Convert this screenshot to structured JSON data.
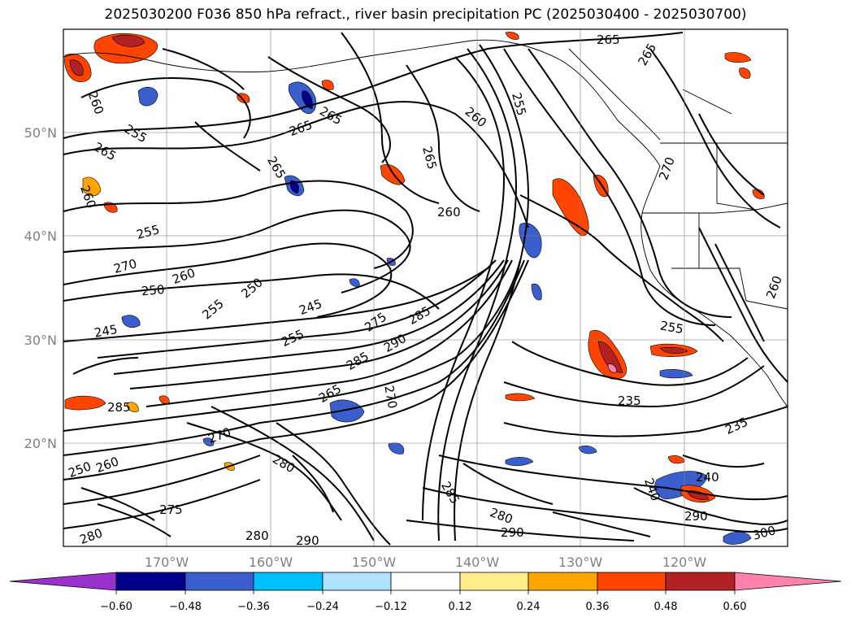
{
  "title": "2025030200 F036 850 hPa refract., river basin precipitation PC (2025030400 - 2025030700)",
  "latitude_labels": [
    "50°N",
    "40°N",
    "30°N",
    "20°N"
  ],
  "longitude_labels": [
    "170°W",
    "160°W",
    "150°W",
    "140°W",
    "130°W",
    "120°W"
  ],
  "colorbar": {
    "colors": [
      "#9932cc",
      "#00008b",
      "#3a5fcd",
      "#00bfff",
      "#b0e2ff",
      "#ffffff",
      "#ffec8b",
      "#ffa500",
      "#ff4500",
      "#b22222",
      "#ff82ab"
    ],
    "tick_labels": [
      "−0.60",
      "−0.48",
      "−0.36",
      "−0.24",
      "−0.12",
      "0.12",
      "0.24",
      "0.36",
      "0.48",
      "0.60"
    ]
  },
  "contour_labels": [
    "260",
    "255",
    "265",
    "265",
    "265",
    "255",
    "250",
    "250",
    "260",
    "270",
    "255",
    "250",
    "245",
    "245",
    "255",
    "275",
    "285",
    "290",
    "285",
    "265",
    "270",
    "285",
    "280",
    "290",
    "285",
    "280",
    "290",
    "235",
    "235",
    "255",
    "260",
    "270",
    "260",
    "240",
    "265",
    "265",
    "265",
    "260",
    "255",
    "265",
    "280",
    "270",
    "260",
    "275",
    "280",
    "240",
    "260",
    "290",
    "300"
  ]
}
